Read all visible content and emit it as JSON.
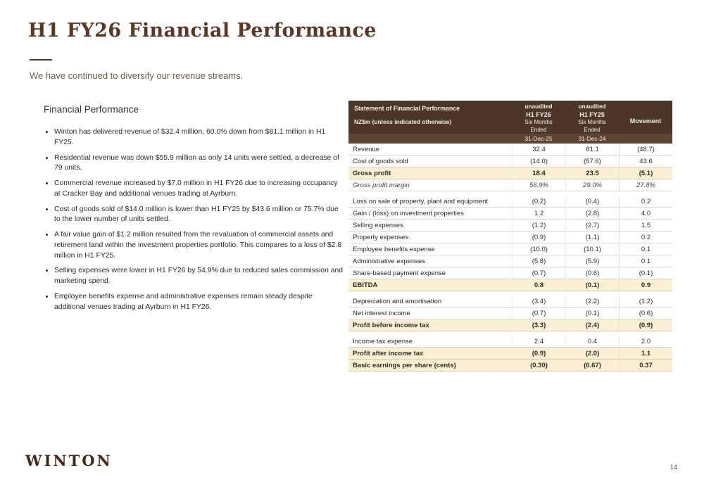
{
  "slide": {
    "title": "H1 FY26 Financial Performance",
    "subtitle": "We have continued to diversify our revenue streams.",
    "logo": "WINTON",
    "page_number": "14"
  },
  "content": {
    "heading": "Financial Performance",
    "bullets": [
      "Winton has delivered revenue of $32.4 million, 60.0% down from $81.1 million in H1 FY25.",
      "Residential revenue was down $55.9 million as only 14 units were settled, a decrease of 79 units.",
      "Commercial revenue increased by $7.0 million in H1 FY26 due to increasing occupancy at Cracker Bay and additional venues trading at Ayrburn.",
      "Cost of goods sold of $14.0 million is lower than H1 FY25 by $43.6 million or 75.7% due to the lower number of units settled.",
      "A fair value gain of $1.2 million resulted from the revaluation of commercial assets and retirement land within the investment properties portfolio. This compares to a loss of $2.8 million in H1 FY25.",
      "Selling expenses were lower in H1 FY26 by 54.9% due to reduced sales commission and marketing spend.",
      "Employee benefits expense and administrative expenses remain steady despite additional venues trading at Ayrburn in H1 FY26."
    ]
  },
  "table": {
    "header": {
      "title": "Statement of Financial Performance",
      "unit": "NZ$m (unless indicated otherwise)",
      "columns": [
        {
          "audit": "unaudited",
          "period": "H1 FY26",
          "sub": "Six Months Ended",
          "date": "31-Dec-25"
        },
        {
          "audit": "unaudited",
          "period": "H1 FY25",
          "sub": "Six Months Ended",
          "date": "31-Dec-24"
        },
        {
          "label": "Movement"
        }
      ]
    },
    "rows": [
      {
        "label": "Revenue",
        "v1": "32.4",
        "v2": "81.1",
        "mv": "(48.7)",
        "style": ""
      },
      {
        "label": "Cost of goods sold",
        "v1": "(14.0)",
        "v2": "(57.6)",
        "mv": "43.6",
        "style": ""
      },
      {
        "label": "Gross profit",
        "v1": "18.4",
        "v2": "23.5",
        "mv": "(5.1)",
        "style": "bold"
      },
      {
        "label": "Gross profit margin",
        "v1": "56.9%",
        "v2": "29.0%",
        "mv": "27.8%",
        "style": "italic"
      },
      {
        "type": "gap"
      },
      {
        "label": "Loss on sale of property, plant and equipment",
        "v1": "(0.2)",
        "v2": "(0.4)",
        "mv": "0.2",
        "style": ""
      },
      {
        "label": "Gain / (loss) on investment properties",
        "v1": "1.2",
        "v2": "(2.8)",
        "mv": "4.0",
        "style": ""
      },
      {
        "label": "Selling expenses",
        "v1": "(1.2)",
        "v2": "(2.7)",
        "mv": "1.5",
        "style": ""
      },
      {
        "label": "Property expenses",
        "v1": "(0.9)",
        "v2": "(1.1)",
        "mv": "0.2",
        "style": ""
      },
      {
        "label": "Employee benefits expense",
        "v1": "(10.0)",
        "v2": "(10.1)",
        "mv": "0.1",
        "style": ""
      },
      {
        "label": "Administrative expenses",
        "v1": "(5.8)",
        "v2": "(5.9)",
        "mv": "0.1",
        "style": ""
      },
      {
        "label": "Share-based payment expense",
        "v1": "(0.7)",
        "v2": "(0.6)",
        "mv": "(0.1)",
        "style": ""
      },
      {
        "label": "EBITDA",
        "v1": "0.8",
        "v2": "(0.1)",
        "mv": "0.9",
        "style": "bold"
      },
      {
        "type": "gap"
      },
      {
        "label": "Depreciation and amortisation",
        "v1": "(3.4)",
        "v2": "(2.2)",
        "mv": "(1.2)",
        "style": ""
      },
      {
        "label": "Net interest income",
        "v1": "(0.7)",
        "v2": "(0.1)",
        "mv": "(0.6)",
        "style": ""
      },
      {
        "label": "Profit before income tax",
        "v1": "(3.3)",
        "v2": "(2.4)",
        "mv": "(0.9)",
        "style": "bold"
      },
      {
        "type": "gap"
      },
      {
        "label": "Income tax expense",
        "v1": "2.4",
        "v2": "0.4",
        "mv": "2.0",
        "style": ""
      },
      {
        "label": "Profit after income tax",
        "v1": "(0.9)",
        "v2": "(2.0)",
        "mv": "1.1",
        "style": "bold"
      },
      {
        "label": "Basic earnings per share (cents)",
        "v1": "(0.30)",
        "v2": "(0.67)",
        "mv": "0.37",
        "style": "bold"
      }
    ]
  },
  "colors": {
    "accent_brown": "#5b3724",
    "table_header_bg": "#4b3627",
    "table_header_stripe_bg": "#5d4533",
    "highlight_row_bg": "#fbf0d3"
  }
}
